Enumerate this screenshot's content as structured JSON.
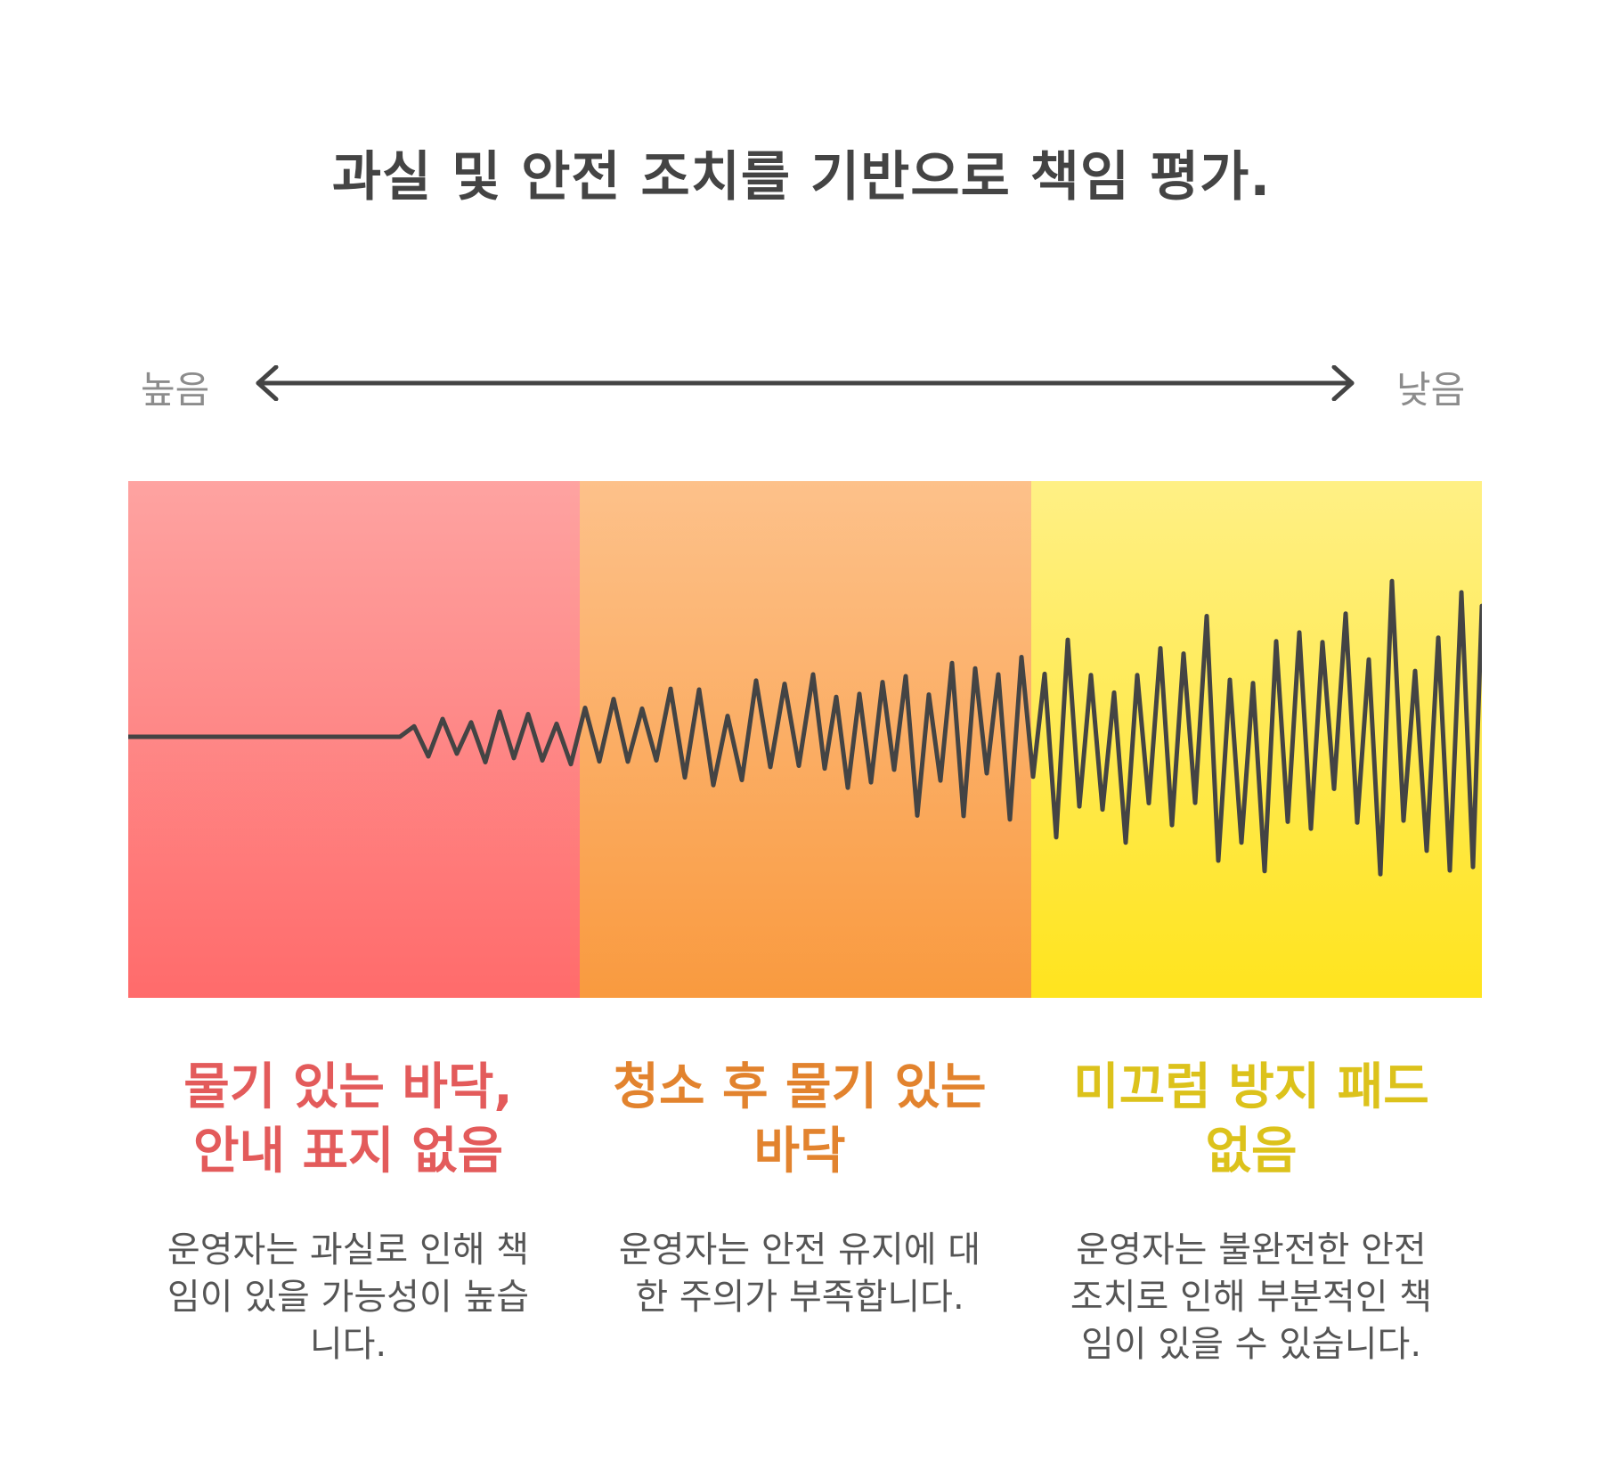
{
  "title": "과실 및 안전 조치를 기반으로 책임 평가.",
  "scale": {
    "high_label": "높음",
    "low_label": "낮음"
  },
  "colors": {
    "red": "#ff6b6b",
    "orange": "#f99a3f",
    "yellow": "#ffe41e",
    "line": "#444444"
  },
  "categories": [
    {
      "title": "물기 있는 바닥, 안내 표지 없음",
      "description": "운영자는 과실로 인해 책임이 있을 가능성이 높습니다."
    },
    {
      "title": "청소 후 물기 있는 바닥",
      "description": "운영자는 안전 유지에 대한 주의가 부족합니다."
    },
    {
      "title": "미끄럼 방지 패드 없음",
      "description": "운영자는 불완전한 안전 조치로 인해 부분적인 책임이 있을 수 있습니다."
    }
  ]
}
